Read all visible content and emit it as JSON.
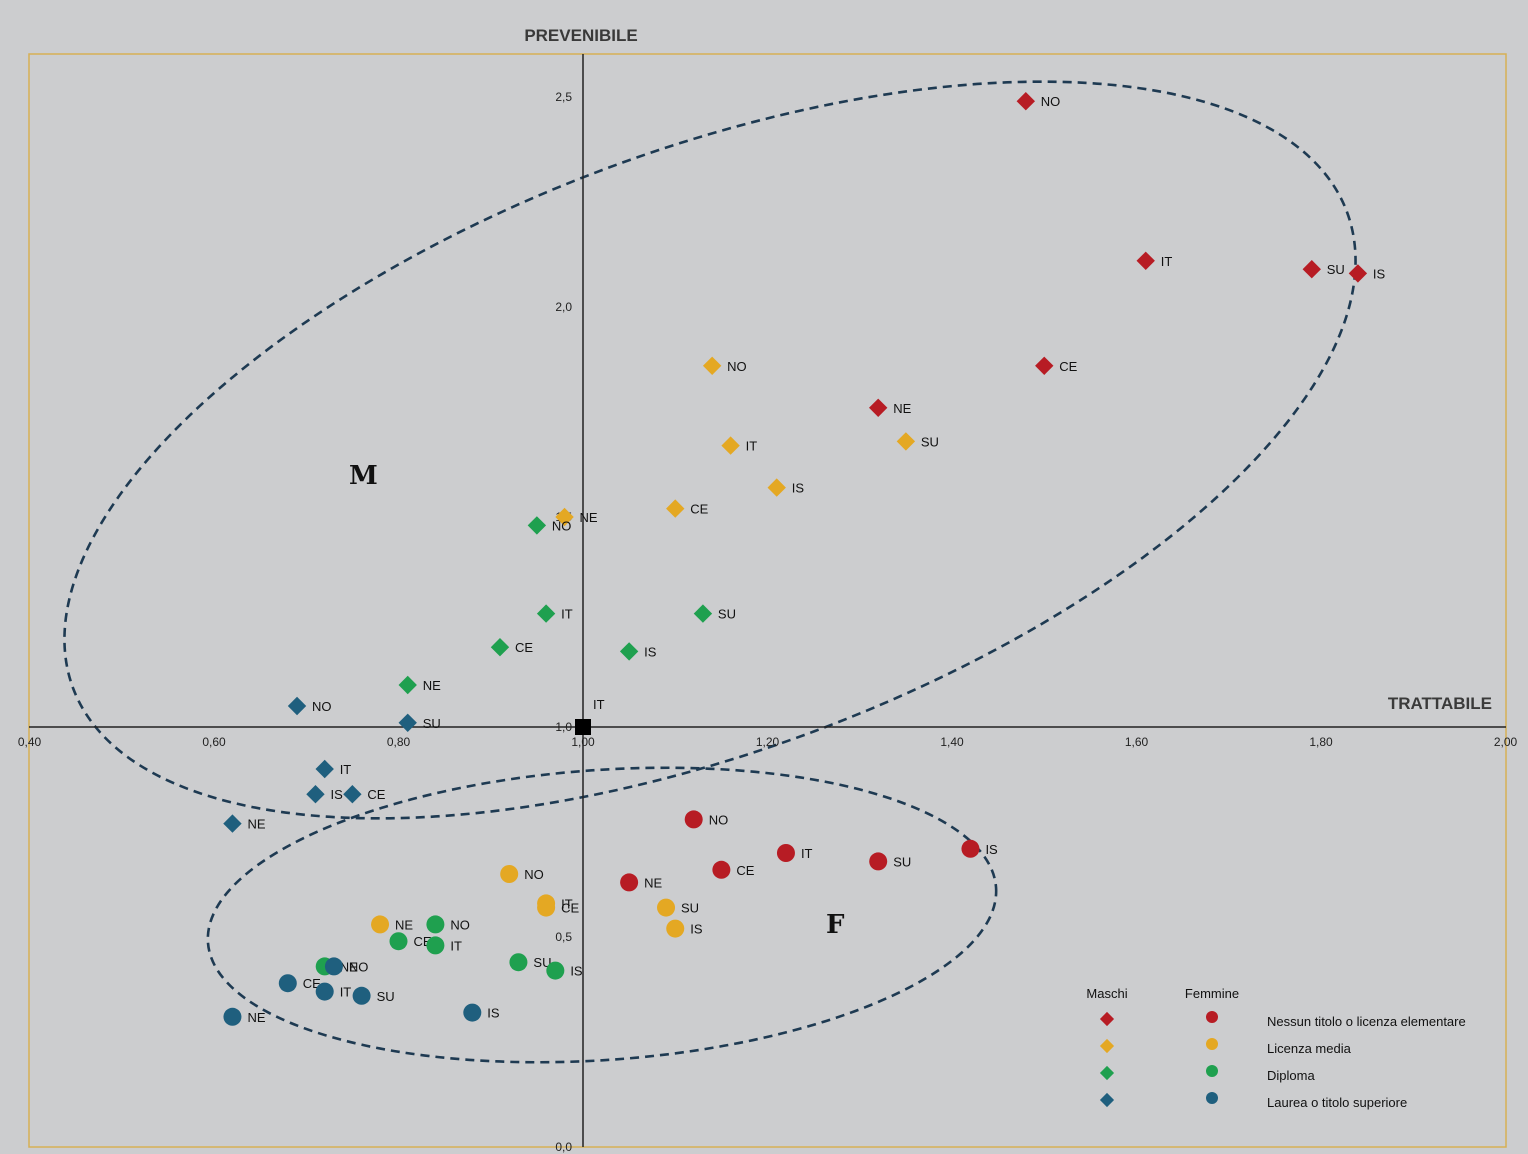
{
  "chart_data": {
    "type": "scatter",
    "x_axis_title": "TRATTABILE",
    "y_axis_title": "PREVENIBILE",
    "xlim": [
      0.4,
      2.0
    ],
    "ylim": [
      0.0,
      2.5
    ],
    "x_ticks": [
      "0,40",
      "0,60",
      "0,80",
      "1,00",
      "1,20",
      "1,40",
      "1,60",
      "1,80",
      "2,00"
    ],
    "x_tick_values": [
      0.4,
      0.6,
      0.8,
      1.0,
      1.2,
      1.4,
      1.6,
      1.8,
      2.0
    ],
    "y_ticks": [
      "0,0",
      "0,5",
      "1,0",
      "1,5",
      "2,0",
      "2,5"
    ],
    "y_tick_values": [
      0.0,
      0.5,
      1.0,
      1.5,
      2.0,
      2.5
    ],
    "origin": {
      "x": 1.0,
      "y": 1.0,
      "label": "IT"
    },
    "group_labels": [
      "M",
      "F"
    ],
    "legend": {
      "headers": [
        "Maschi",
        "Femmine"
      ],
      "entries": [
        "Nessun titolo o licenza elementare",
        "Licenza media",
        "Diploma",
        "Laurea o titolo superiore"
      ]
    },
    "colors": {
      "Nessun titolo o licenza elementare": "#b71c24",
      "Licenza media": "#e4a823",
      "Diploma": "#1fa04f",
      "Laurea o titolo superiore": "#1f5f7e"
    },
    "series": [
      {
        "name": "Nessun titolo o licenza elementare",
        "sex": "Maschi",
        "points": [
          {
            "label": "NO",
            "x": 1.48,
            "y": 2.49
          },
          {
            "label": "IT",
            "x": 1.61,
            "y": 2.11
          },
          {
            "label": "SU",
            "x": 1.79,
            "y": 2.09
          },
          {
            "label": "IS",
            "x": 1.84,
            "y": 2.08
          },
          {
            "label": "CE",
            "x": 1.5,
            "y": 1.86
          },
          {
            "label": "NE",
            "x": 1.32,
            "y": 1.76
          }
        ]
      },
      {
        "name": "Licenza media",
        "sex": "Maschi",
        "points": [
          {
            "label": "NO",
            "x": 1.14,
            "y": 1.86
          },
          {
            "label": "IT",
            "x": 1.16,
            "y": 1.67
          },
          {
            "label": "SU",
            "x": 1.35,
            "y": 1.68
          },
          {
            "label": "IS",
            "x": 1.21,
            "y": 1.57
          },
          {
            "label": "CE",
            "x": 1.1,
            "y": 1.52
          },
          {
            "label": "NE",
            "x": 0.98,
            "y": 1.5
          }
        ]
      },
      {
        "name": "Diploma",
        "sex": "Maschi",
        "points": [
          {
            "label": "NO",
            "x": 0.95,
            "y": 1.48
          },
          {
            "label": "IT",
            "x": 0.96,
            "y": 1.27
          },
          {
            "label": "SU",
            "x": 1.13,
            "y": 1.27
          },
          {
            "label": "CE",
            "x": 0.91,
            "y": 1.19
          },
          {
            "label": "IS",
            "x": 1.05,
            "y": 1.18
          },
          {
            "label": "NE",
            "x": 0.81,
            "y": 1.1
          }
        ]
      },
      {
        "name": "Laurea o titolo superiore",
        "sex": "Maschi",
        "points": [
          {
            "label": "NO",
            "x": 0.69,
            "y": 1.05
          },
          {
            "label": "SU",
            "x": 0.81,
            "y": 1.01
          },
          {
            "label": "IT",
            "x": 0.72,
            "y": 0.9
          },
          {
            "label": "IS",
            "x": 0.71,
            "y": 0.84
          },
          {
            "label": "CE",
            "x": 0.75,
            "y": 0.84
          },
          {
            "label": "NE",
            "x": 0.62,
            "y": 0.77
          }
        ]
      },
      {
        "name": "Nessun titolo o licenza elementare",
        "sex": "Femmine",
        "points": [
          {
            "label": "NO",
            "x": 1.12,
            "y": 0.78
          },
          {
            "label": "IT",
            "x": 1.22,
            "y": 0.7
          },
          {
            "label": "IS",
            "x": 1.42,
            "y": 0.71
          },
          {
            "label": "SU",
            "x": 1.32,
            "y": 0.68
          },
          {
            "label": "CE",
            "x": 1.15,
            "y": 0.66
          },
          {
            "label": "NE",
            "x": 1.05,
            "y": 0.63
          }
        ]
      },
      {
        "name": "Licenza media",
        "sex": "Femmine",
        "points": [
          {
            "label": "NO",
            "x": 0.92,
            "y": 0.65
          },
          {
            "label": "IT",
            "x": 0.96,
            "y": 0.58
          },
          {
            "label": "CE",
            "x": 0.96,
            "y": 0.57
          },
          {
            "label": "SU",
            "x": 1.09,
            "y": 0.57
          },
          {
            "label": "IS",
            "x": 1.1,
            "y": 0.52
          },
          {
            "label": "NE",
            "x": 0.78,
            "y": 0.53
          }
        ]
      },
      {
        "name": "Diploma",
        "sex": "Femmine",
        "points": [
          {
            "label": "NO",
            "x": 0.84,
            "y": 0.53
          },
          {
            "label": "CE",
            "x": 0.8,
            "y": 0.49
          },
          {
            "label": "IT",
            "x": 0.84,
            "y": 0.48
          },
          {
            "label": "NE",
            "x": 0.72,
            "y": 0.43
          },
          {
            "label": "SU",
            "x": 0.93,
            "y": 0.44
          },
          {
            "label": "IS",
            "x": 0.97,
            "y": 0.42
          }
        ]
      },
      {
        "name": "Laurea o titolo superiore",
        "sex": "Femmine",
        "points": [
          {
            "label": "NO",
            "x": 0.73,
            "y": 0.43
          },
          {
            "label": "CE",
            "x": 0.68,
            "y": 0.39
          },
          {
            "label": "IT",
            "x": 0.72,
            "y": 0.37
          },
          {
            "label": "SU",
            "x": 0.76,
            "y": 0.36
          },
          {
            "label": "IS",
            "x": 0.88,
            "y": 0.32
          },
          {
            "label": "NE",
            "x": 0.62,
            "y": 0.31
          }
        ]
      }
    ]
  }
}
